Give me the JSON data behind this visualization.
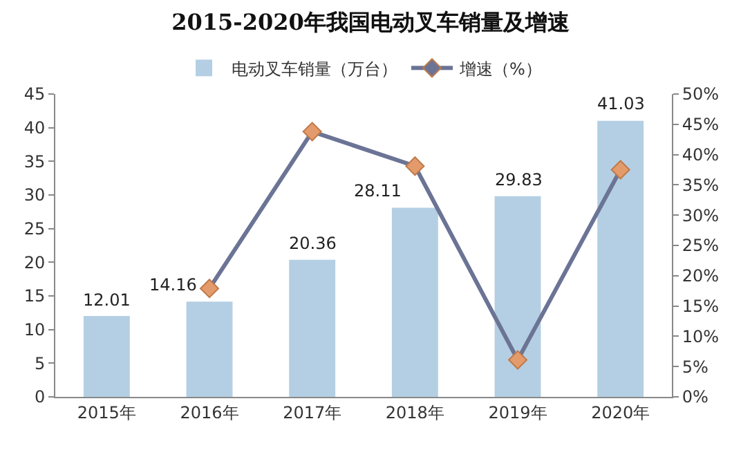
{
  "chart_data": {
    "type": "bar",
    "title": "2015-2020年我国电动叉车销量及增速",
    "categories": [
      "2015年",
      "2016年",
      "2017年",
      "2018年",
      "2019年",
      "2020年"
    ],
    "series": [
      {
        "name": "电动叉车销量（万台）",
        "color": "#b4cfe3",
        "values": [
          12.01,
          14.16,
          20.36,
          28.11,
          29.83,
          41.03
        ],
        "value_labels": [
          "12.01",
          "14.16",
          "20.36",
          "28.11",
          "29.83",
          "41.03"
        ]
      },
      {
        "name": "增速（%）",
        "type": "line",
        "axis": "y2",
        "color": "#6b7495",
        "colors": [
          null,
          "#e39b6b",
          "#e39b6b",
          "#e39b6b",
          "#e39b6b",
          "#e39b6b"
        ],
        "marker": "diamond",
        "values": [
          null,
          17.9,
          43.8,
          38.1,
          6.1,
          37.5
        ]
      }
    ],
    "ylim": [
      0,
      45
    ],
    "yticks": [
      0,
      5,
      10,
      15,
      20,
      25,
      30,
      35,
      40,
      45
    ],
    "y2lim": [
      0,
      50
    ],
    "y2ticks": [
      {
        "value": 0,
        "label": "0%"
      },
      {
        "value": 5,
        "label": "5%"
      },
      {
        "value": 10,
        "label": "10%"
      },
      {
        "value": 15,
        "label": "15%"
      },
      {
        "value": 20,
        "label": "20%"
      },
      {
        "value": 25,
        "label": "25%"
      },
      {
        "value": 30,
        "label": "30%"
      },
      {
        "value": 35,
        "label": "35%"
      },
      {
        "value": 40,
        "label": "40%"
      },
      {
        "value": 45,
        "label": "45%"
      },
      {
        "value": 50,
        "label": "50%"
      }
    ],
    "grid": false,
    "legend": "top"
  }
}
